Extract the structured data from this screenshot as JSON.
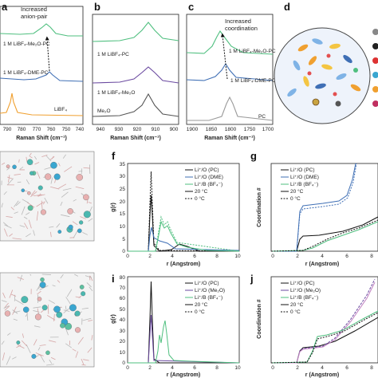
{
  "panels": {
    "a": {
      "label": "a",
      "annotation": [
        "Increased",
        "anion-pair"
      ],
      "series_labels": [
        "1 M LiBF₄-Me₂O-PC",
        "1 M LiBF₄-DME-PC",
        "LiBF₄"
      ],
      "xlabel": "Raman Shift (cm⁻¹)",
      "xticks": [
        "790",
        "780",
        "770",
        "760",
        "750",
        "740"
      ]
    },
    "b": {
      "label": "b",
      "series_labels": [
        "1 M LiBF₄-PC",
        "1 M LiBF₄-Me₂O",
        "Me₂O"
      ],
      "xlabel": "Raman Shift (cm⁻¹)",
      "xticks": [
        "940",
        "930",
        "920",
        "910",
        "900"
      ]
    },
    "c": {
      "label": "c",
      "annotation": [
        "Increased",
        "coordination"
      ],
      "series_labels": [
        "1 M LiBF₄-Me₂O-PC",
        "1 M LiBF₄-DME-PC",
        "PC"
      ],
      "xlabel": "Raman Shift (cm⁻¹)",
      "xticks": [
        "1900",
        "1850",
        "1800",
        "1750",
        "1700"
      ]
    },
    "d": {
      "label": "d"
    },
    "f": {
      "label": "f",
      "ylabel": "g(r)",
      "xlabel": "r (Angstrom)",
      "xticks": [
        "0",
        "2",
        "4",
        "6",
        "8",
        "10"
      ],
      "yticks": [
        "0",
        "5",
        "10",
        "15",
        "20",
        "25",
        "30",
        "35"
      ],
      "legend": [
        "Li⁺/O (PC)",
        "Li⁺/O (DME)",
        "Li⁺/B (BF₄⁻)",
        "20 °C",
        "0 °C"
      ]
    },
    "g": {
      "label": "g",
      "ylabel": "Coordination #",
      "xlabel": "r (Angstrom)",
      "xticks": [
        "0",
        "2",
        "4",
        "6",
        "8"
      ],
      "legend": [
        "Li⁺/O (PC)",
        "Li⁺/O (DME)",
        "Li⁺/B (BF₄⁻)",
        "20 °C",
        "0 °C"
      ]
    },
    "i": {
      "label": "i",
      "ylabel": "g(r)",
      "xlabel": "r (Angstrom)",
      "xticks": [
        "0",
        "2",
        "4",
        "6",
        "8",
        "10"
      ],
      "yticks": [
        "0",
        "10",
        "20",
        "30",
        "40",
        "50",
        "60",
        "70",
        "80"
      ],
      "legend": [
        "Li⁺/O (PC)",
        "Li⁺/O (Me₂O)",
        "Li⁺/B (BF₄⁻)",
        "20 °C",
        "0 °C"
      ]
    },
    "j": {
      "label": "j",
      "ylabel": "Coordination #",
      "xlabel": "r (Angstrom)",
      "xticks": [
        "0",
        "2",
        "4",
        "6",
        "8"
      ],
      "legend": [
        "Li⁺/O (PC)",
        "Li⁺/O (Me₂O)",
        "Li⁺/B (BF₄⁻)",
        "20 °C",
        "0 °C"
      ]
    }
  },
  "colors": {
    "green": "#4fbf7f",
    "blue": "#3f6fb5",
    "orange": "#f0a030",
    "purple": "#6b4aa0",
    "gray": "#555555",
    "black": "#111111"
  }
}
